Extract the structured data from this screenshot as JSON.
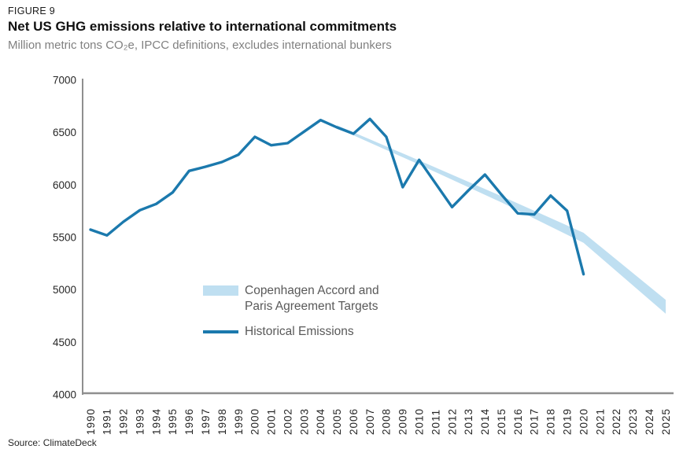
{
  "header": {
    "figure_label": "FIGURE 9",
    "title": "Net US GHG emissions relative to international commitments",
    "subtitle": "Million metric tons CO₂e, IPCC definitions, excludes international bunkers"
  },
  "source": "Source: ClimateDeck",
  "legend": {
    "target_label_line1": "Copenhagen Accord and",
    "target_label_line2": "Paris Agreement Targets",
    "historical_label": "Historical Emissions"
  },
  "colors": {
    "historical_line": "#1b79ad",
    "target_band": "#bfdff1",
    "subtitle_text": "#808080",
    "legend_text": "#595959",
    "axis": "#8f8f8f",
    "tick_text": "#262626"
  },
  "chart_data": {
    "type": "line",
    "title": "Net US GHG emissions relative to international commitments",
    "ylabel": "Million metric tons CO2e",
    "xlabel": "",
    "grid": false,
    "legend_position": "inside-center-left",
    "y_axis": {
      "min": 4000,
      "max": 7000,
      "tick_step": 500,
      "ticks": [
        7000,
        6500,
        6000,
        5500,
        5000,
        4500,
        4000
      ]
    },
    "x_axis": {
      "min": 1990,
      "max": 2025,
      "ticks": [
        1990,
        1991,
        1992,
        1993,
        1994,
        1995,
        1996,
        1997,
        1998,
        1999,
        2000,
        2001,
        2002,
        2003,
        2004,
        2005,
        2006,
        2007,
        2008,
        2009,
        2010,
        2011,
        2012,
        2013,
        2014,
        2015,
        2016,
        2017,
        2018,
        2019,
        2020,
        2021,
        2022,
        2023,
        2024,
        2025
      ]
    },
    "series": [
      {
        "name": "Historical Emissions",
        "type": "line",
        "x": [
          1990,
          1991,
          1992,
          1993,
          1994,
          1995,
          1996,
          1997,
          1998,
          1999,
          2000,
          2001,
          2002,
          2003,
          2004,
          2005,
          2006,
          2007,
          2008,
          2009,
          2010,
          2011,
          2012,
          2013,
          2014,
          2015,
          2016,
          2017,
          2018,
          2019,
          2020
        ],
        "values": [
          5575,
          5520,
          5650,
          5760,
          5820,
          5930,
          6135,
          6175,
          6220,
          6290,
          6460,
          6380,
          6400,
          6510,
          6620,
          6550,
          6490,
          6630,
          6460,
          5980,
          6240,
          6015,
          5790,
          5950,
          6100,
          5910,
          5730,
          5720,
          5900,
          5755,
          5150
        ]
      },
      {
        "name": "Copenhagen Accord and Paris Agreement Targets",
        "type": "band",
        "anchors": [
          {
            "year": 2005,
            "upper": 6570,
            "lower": 6545
          },
          {
            "year": 2010,
            "upper": 6235,
            "lower": 6195
          },
          {
            "year": 2015,
            "upper": 5895,
            "lower": 5835
          },
          {
            "year": 2020,
            "upper": 5545,
            "lower": 5450
          },
          {
            "year": 2025,
            "upper": 4905,
            "lower": 4773
          }
        ]
      }
    ]
  }
}
